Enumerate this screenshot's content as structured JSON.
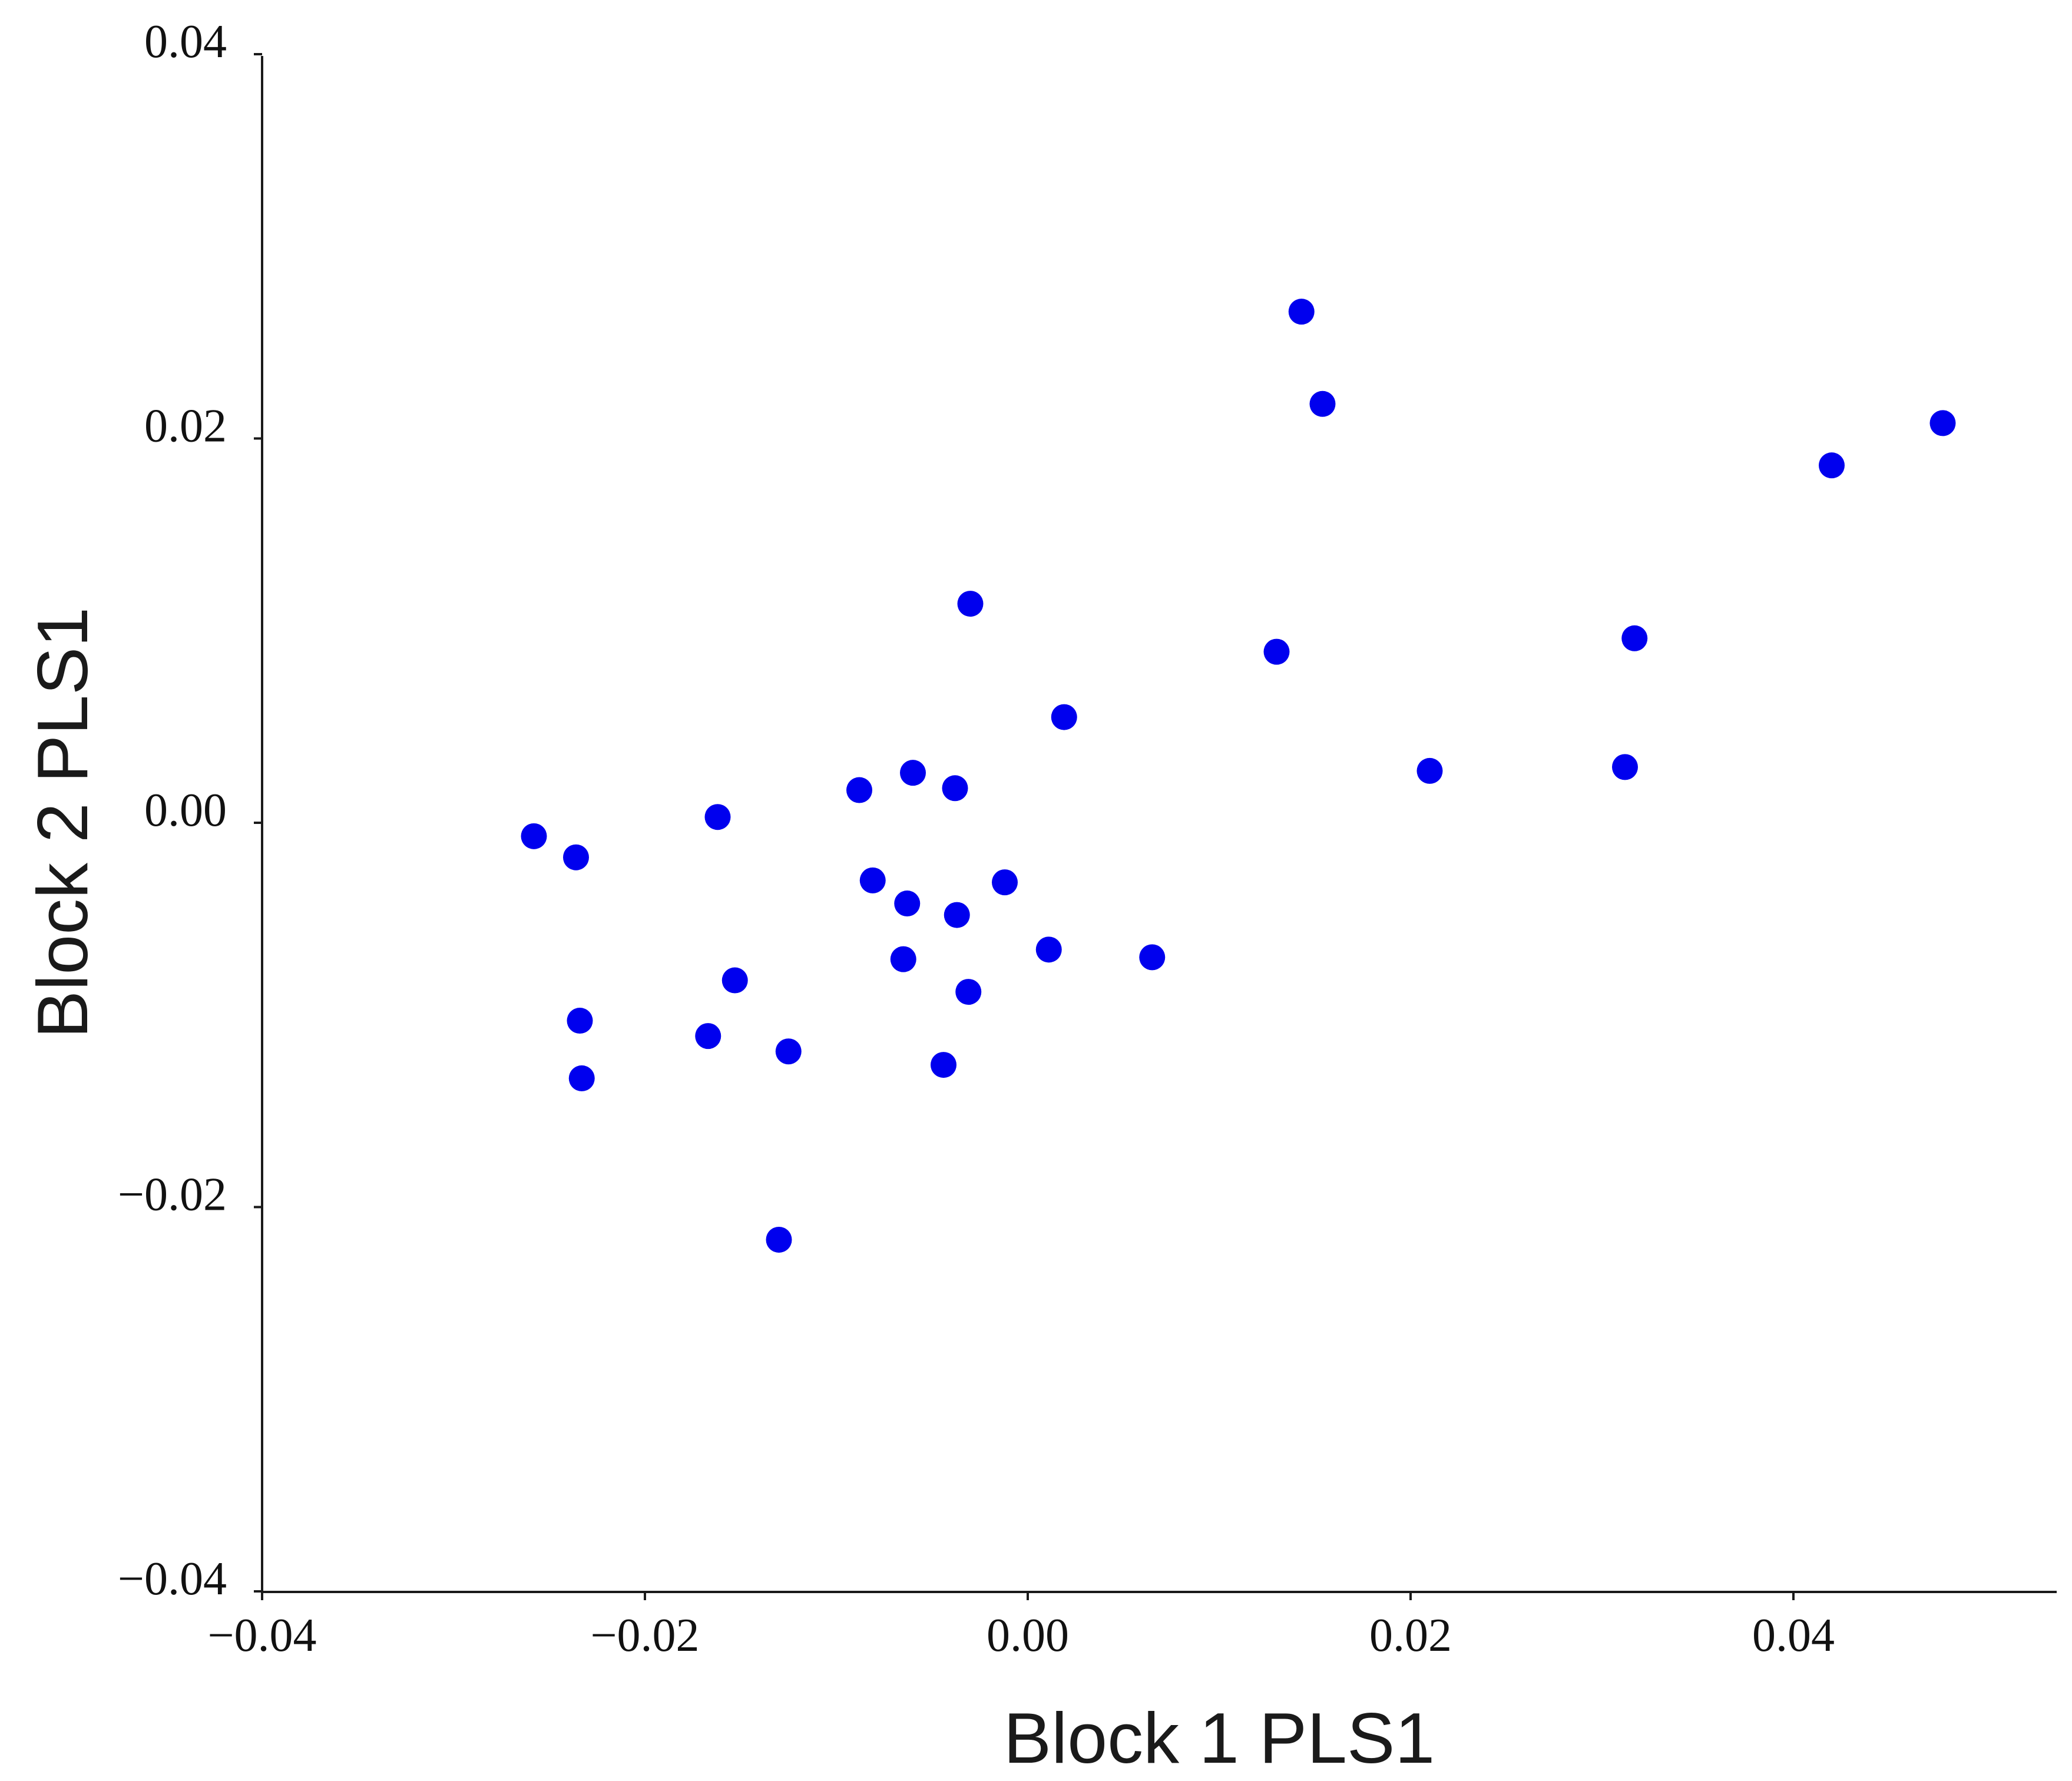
{
  "chart_data": {
    "type": "scatter",
    "title": "",
    "xlabel": "Block 1 PLS1",
    "ylabel": "Block 2 PLS1",
    "xlim": [
      -0.04,
      0.054
    ],
    "ylim": [
      -0.04,
      0.04
    ],
    "x_ticks": [
      -0.04,
      -0.02,
      0.0,
      0.02,
      0.04
    ],
    "y_ticks": [
      -0.04,
      -0.02,
      0.0,
      0.02,
      0.04
    ],
    "x_tick_labels": [
      "−0.04",
      "−0.02",
      "0.00",
      "0.02",
      "0.04"
    ],
    "y_tick_labels": [
      "−0.04",
      "−0.02",
      "0.00",
      "0.02",
      "0.04"
    ],
    "grid": false,
    "legend": "none",
    "marker_color": "#0000ee",
    "series": [
      {
        "points": [
          {
            "x": -0.0258,
            "y": -0.0007
          },
          {
            "x": -0.0236,
            "y": -0.0018
          },
          {
            "x": -0.0234,
            "y": -0.0103
          },
          {
            "x": -0.0233,
            "y": -0.0133
          },
          {
            "x": -0.0162,
            "y": 0.0003
          },
          {
            "x": -0.0167,
            "y": -0.0111
          },
          {
            "x": -0.0153,
            "y": -0.0082
          },
          {
            "x": -0.0125,
            "y": -0.0119
          },
          {
            "x": -0.013,
            "y": -0.0217
          },
          {
            "x": -0.0088,
            "y": 0.0017
          },
          {
            "x": -0.0081,
            "y": -0.003
          },
          {
            "x": -0.006,
            "y": 0.0026
          },
          {
            "x": -0.0063,
            "y": -0.0042
          },
          {
            "x": -0.0065,
            "y": -0.0071
          },
          {
            "x": -0.0038,
            "y": 0.0018
          },
          {
            "x": -0.0037,
            "y": -0.0048
          },
          {
            "x": -0.0044,
            "y": -0.0126
          },
          {
            "x": -0.0031,
            "y": -0.0088
          },
          {
            "x": -0.003,
            "y": 0.0114
          },
          {
            "x": -0.0012,
            "y": -0.0031
          },
          {
            "x": 0.0011,
            "y": -0.0066
          },
          {
            "x": 0.0019,
            "y": 0.0055
          },
          {
            "x": 0.0065,
            "y": -0.007
          },
          {
            "x": 0.013,
            "y": 0.0089
          },
          {
            "x": 0.0143,
            "y": 0.0266
          },
          {
            "x": 0.0154,
            "y": 0.0218
          },
          {
            "x": 0.021,
            "y": 0.0027
          },
          {
            "x": 0.0312,
            "y": 0.0029
          },
          {
            "x": 0.0317,
            "y": 0.0096
          },
          {
            "x": 0.042,
            "y": 0.0186
          },
          {
            "x": 0.0478,
            "y": 0.0208
          }
        ]
      }
    ]
  }
}
